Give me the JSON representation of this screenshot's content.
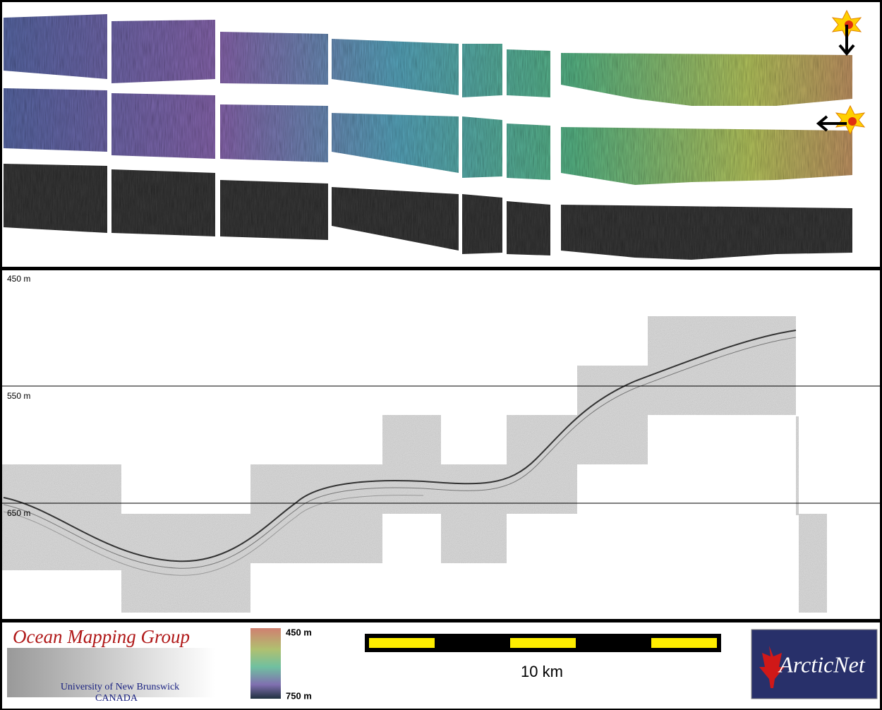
{
  "profile": {
    "depth_labels": [
      "450 m",
      "550 m",
      "650 m"
    ]
  },
  "footer": {
    "logo": {
      "title": "Ocean Mapping Group",
      "university": "University of New Brunswick",
      "country": "CANADA"
    },
    "color_scale": {
      "top_label": "450 m",
      "bottom_label": "750 m"
    },
    "scale_bar": {
      "label": "10 km"
    },
    "partner_logo": {
      "text": "ArcticNet"
    }
  }
}
